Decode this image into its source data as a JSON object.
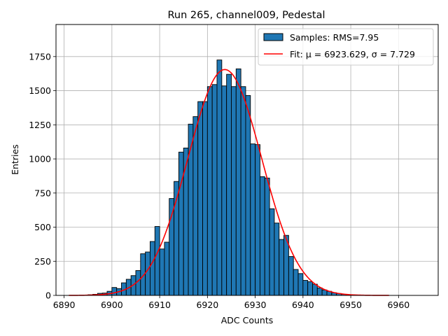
{
  "chart_data": {
    "type": "bar",
    "title": "Run 265, channel009, Pedestal",
    "xlabel": "ADC Counts",
    "ylabel": "Entries",
    "xlim": [
      6888.3,
      6968.3
    ],
    "ylim": [
      0,
      1985
    ],
    "xticks": [
      6890,
      6900,
      6910,
      6920,
      6930,
      6940,
      6950,
      6960
    ],
    "yticks": [
      0,
      250,
      500,
      750,
      1000,
      1250,
      1500,
      1750
    ],
    "grid": true,
    "legend_position": "top-right",
    "bin_width": 1,
    "series": [
      {
        "name": "Samples: RMS=7.95",
        "kind": "histogram",
        "color": "#1f77b4",
        "edgecolor": "#000000",
        "bins": [
          [
            6895,
            5
          ],
          [
            6896,
            8
          ],
          [
            6897,
            15
          ],
          [
            6898,
            17
          ],
          [
            6899,
            30
          ],
          [
            6900,
            58
          ],
          [
            6901,
            50
          ],
          [
            6902,
            92
          ],
          [
            6903,
            118
          ],
          [
            6904,
            145
          ],
          [
            6905,
            182
          ],
          [
            6906,
            305
          ],
          [
            6907,
            318
          ],
          [
            6908,
            395
          ],
          [
            6909,
            505
          ],
          [
            6910,
            340
          ],
          [
            6911,
            390
          ],
          [
            6912,
            710
          ],
          [
            6913,
            835
          ],
          [
            6914,
            1050
          ],
          [
            6915,
            1080
          ],
          [
            6916,
            1255
          ],
          [
            6917,
            1310
          ],
          [
            6918,
            1420
          ],
          [
            6919,
            1420
          ],
          [
            6920,
            1530
          ],
          [
            6921,
            1545
          ],
          [
            6922,
            1725
          ],
          [
            6923,
            1535
          ],
          [
            6924,
            1620
          ],
          [
            6925,
            1530
          ],
          [
            6926,
            1660
          ],
          [
            6927,
            1530
          ],
          [
            6928,
            1465
          ],
          [
            6929,
            1110
          ],
          [
            6930,
            1105
          ],
          [
            6931,
            870
          ],
          [
            6932,
            860
          ],
          [
            6933,
            635
          ],
          [
            6934,
            530
          ],
          [
            6935,
            410
          ],
          [
            6936,
            440
          ],
          [
            6937,
            285
          ],
          [
            6938,
            190
          ],
          [
            6939,
            160
          ],
          [
            6940,
            110
          ],
          [
            6941,
            100
          ],
          [
            6942,
            82
          ],
          [
            6943,
            55
          ],
          [
            6944,
            40
          ],
          [
            6945,
            30
          ],
          [
            6946,
            20
          ],
          [
            6947,
            14
          ],
          [
            6948,
            8
          ],
          [
            6949,
            5
          ]
        ]
      },
      {
        "name": "Fit: μ = 6923.629, σ = 7.729",
        "kind": "gaussian",
        "color": "#ff0000",
        "mu": 6923.629,
        "sigma": 7.729,
        "amplitude": 1655,
        "x_range": [
          6891,
          6958
        ]
      }
    ]
  }
}
